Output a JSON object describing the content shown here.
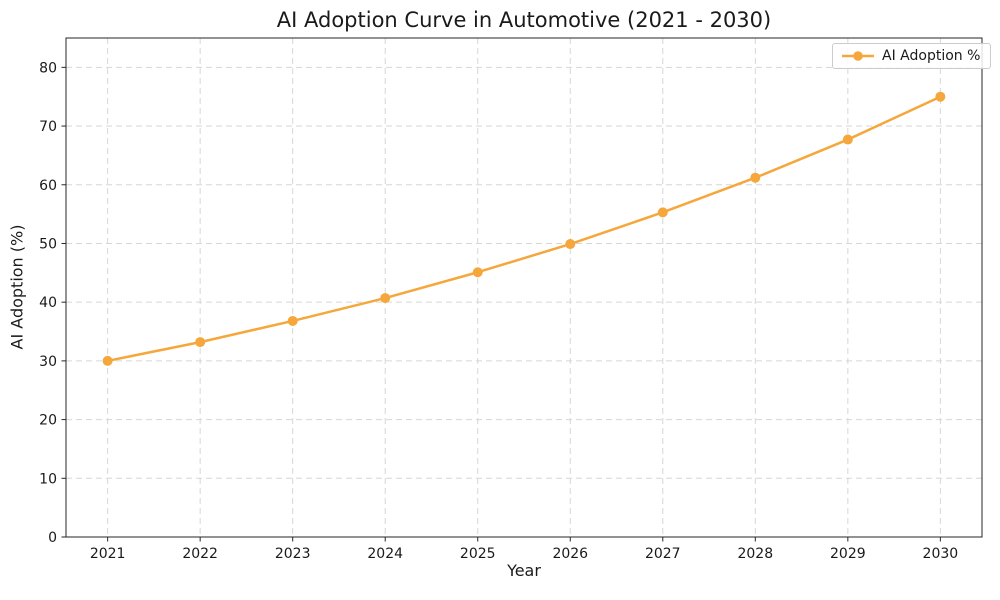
{
  "chart_data": {
    "type": "line",
    "title": "AI Adoption Curve in Automotive (2021 - 2030)",
    "xlabel": "Year",
    "ylabel": "AI Adoption (%)",
    "legend_label": "AI Adoption %",
    "legend_position": "upper right",
    "categories": [
      2021,
      2022,
      2023,
      2024,
      2025,
      2026,
      2027,
      2028,
      2029,
      2030
    ],
    "x_tick_labels": [
      "2021",
      "2022",
      "2023",
      "2024",
      "2025",
      "2026",
      "2027",
      "2028",
      "2029",
      "2030"
    ],
    "series": [
      {
        "name": "AI Adoption %",
        "values": [
          30.0,
          33.2,
          36.8,
          40.7,
          45.1,
          49.9,
          55.3,
          61.2,
          67.7,
          75.0
        ]
      }
    ],
    "yticks": [
      0,
      10,
      20,
      30,
      40,
      50,
      60,
      70,
      80
    ],
    "xlim": [
      2020.55,
      2030.45
    ],
    "ylim": [
      0,
      85
    ],
    "grid": true,
    "grid_style": "dashed",
    "line_color": "#F5A73C",
    "grid_color": "#d6d6d6",
    "spine_color": "#262626",
    "text_color": "#1a1a1a"
  }
}
